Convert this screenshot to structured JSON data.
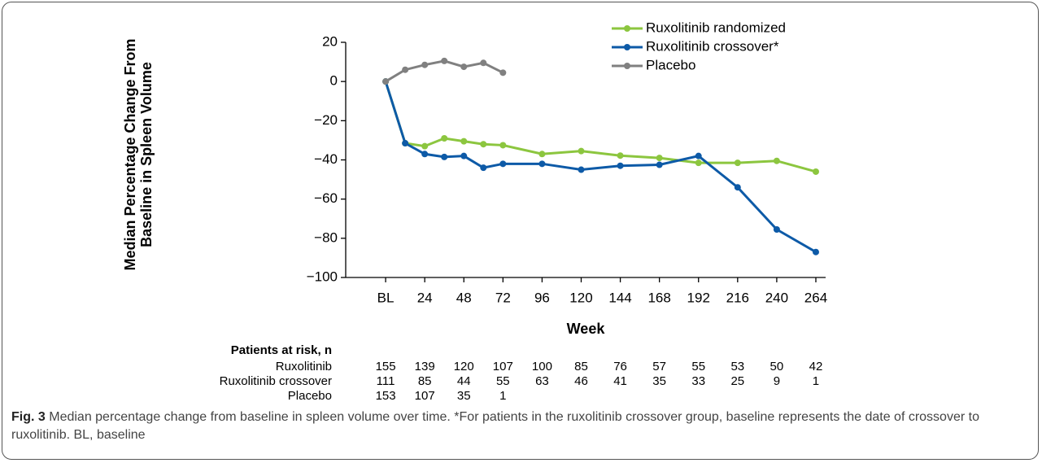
{
  "chart_data": {
    "type": "line",
    "y_label": "Median Percentage Change From Baseline in Spleen Volume",
    "x_label": "Week",
    "x": [
      0,
      12,
      24,
      36,
      48,
      60,
      72,
      96,
      120,
      144,
      168,
      192,
      216,
      240,
      264
    ],
    "series": [
      {
        "name": "Ruxolitinib randomized",
        "color": "#8cc63f",
        "values": [
          0,
          -31.5,
          -33,
          -29,
          -30.5,
          -32,
          -32.5,
          -37,
          -35.5,
          -37.8,
          -39,
          -41.5,
          -41.5,
          -40.5,
          -46
        ]
      },
      {
        "name": "Ruxolitinib crossover*",
        "color": "#0d5aa7",
        "values": [
          0,
          -31.5,
          -37,
          -38.5,
          -38,
          -44,
          -42,
          -42,
          -45,
          -43,
          -42.5,
          -38,
          -54,
          -75.5,
          -87
        ]
      },
      {
        "name": "Placebo",
        "color": "#808080",
        "values": [
          0,
          6,
          8.5,
          10.5,
          7.5,
          9.5,
          4.5,
          null,
          null,
          null,
          null,
          null,
          null,
          null,
          null
        ]
      }
    ],
    "xlim": [
      -24.5,
      270
    ],
    "xticks": [
      {
        "value": 0,
        "label": "BL"
      },
      24,
      48,
      72,
      96,
      120,
      144,
      168,
      192,
      216,
      240,
      264
    ],
    "ylim": [
      -100,
      20
    ],
    "yticks": [
      {
        "value": -100,
        "label": "−100"
      },
      {
        "value": -80,
        "label": "−80"
      },
      {
        "value": -60,
        "label": "−60"
      },
      {
        "value": -40,
        "label": "−40"
      },
      {
        "value": -20,
        "label": "−20"
      },
      0,
      20
    ],
    "legend": "top-right"
  },
  "risk_table": {
    "title": "Patients at risk, n",
    "rows": [
      {
        "label": "Ruxolitinib",
        "values": [
          155,
          139,
          120,
          107,
          100,
          85,
          76,
          57,
          55,
          53,
          50,
          42
        ]
      },
      {
        "label": "Ruxolitinib crossover",
        "values": [
          111,
          85,
          44,
          55,
          63,
          46,
          41,
          35,
          33,
          25,
          9,
          1
        ]
      },
      {
        "label": "Placebo",
        "values": [
          153,
          107,
          35,
          1
        ]
      }
    ]
  },
  "caption": {
    "label": "Fig. 3",
    "text": "Median percentage change from baseline in spleen volume over time. *For patients in the ruxolitinib crossover group, baseline represents the date of crossover to ruxolitinib. BL, baseline"
  }
}
